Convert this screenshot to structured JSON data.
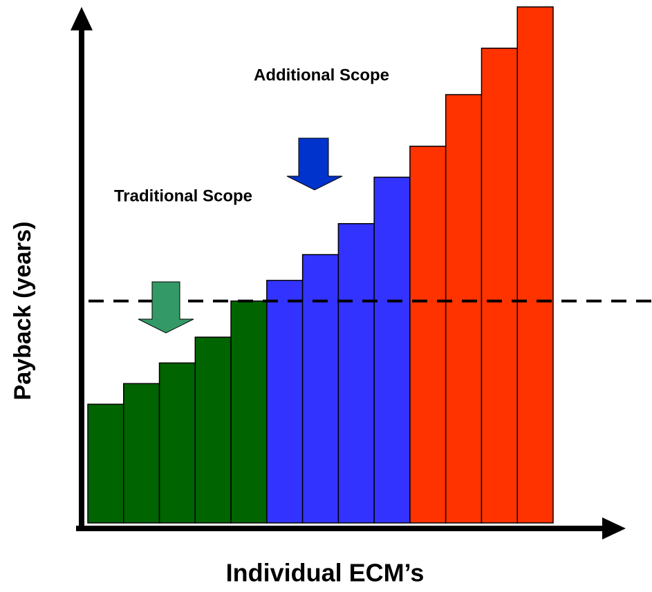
{
  "chart_data": {
    "type": "bar",
    "y_label": "Payback (years)",
    "x_label": "Individual ECM’s",
    "annotations": [
      "Traditional Scope",
      "Additional Scope"
    ],
    "categories": [
      null,
      null,
      null,
      null,
      null,
      null,
      null,
      null,
      null,
      null,
      null,
      null,
      null
    ],
    "values": [
      23,
      27,
      31,
      36,
      43,
      47,
      52,
      58,
      67,
      73,
      83,
      92,
      100
    ],
    "colors": [
      "#006400",
      "#006400",
      "#006400",
      "#006400",
      "#006400",
      "#3333ff",
      "#3333ff",
      "#3333ff",
      "#3333ff",
      "#ff3300",
      "#ff3300",
      "#ff3300",
      "#ff3300"
    ],
    "ylim": [
      0,
      100
    ],
    "threshold": 43
  }
}
